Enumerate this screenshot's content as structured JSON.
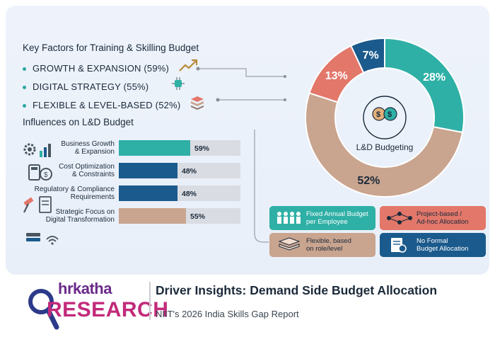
{
  "key_factors": {
    "title": "Key Factors for Training & Skilling Budget",
    "items": [
      "GROWTH & EXPANSION (59%)",
      "DIGITAL STRATEGY (55%)",
      "FLEXIBLE & LEVEL-BASED (52%)"
    ]
  },
  "influences": {
    "title": "Influences on L&D Budget"
  },
  "donut_center_label": "L&D Budgeting",
  "legend": [
    {
      "label_line1": "Fixed Annual Budget",
      "label_line2": "per Employee",
      "color": "#2fb0a6"
    },
    {
      "label_line1": "Project-based /",
      "label_line2": "Ad-hoc Allocation",
      "color": "#e2776a"
    },
    {
      "label_line1": "Flexible, based",
      "label_line2": "on role/level",
      "color": "#c9a48f"
    },
    {
      "label_line1": "No Formal",
      "label_line2": "Budget Allocation",
      "color": "#1b5a8c"
    }
  ],
  "footer": {
    "logo_top": "hrkatha",
    "logo_bottom": "RESEARCH",
    "title": "Driver Insights: Demand Side Budget Allocation",
    "subtitle": "NIIT's 2026 India Skills Gap Report"
  },
  "chart_data": [
    {
      "type": "bar",
      "title": "Influences on L&D Budget",
      "categories": [
        "Business Growth & Expansion",
        "Cost Optimization & Constraints",
        "Regulatory & Compliance Requirements",
        "Strategic Focus on Digital Transformation"
      ],
      "category_lines": [
        [
          "Business Growth",
          "& Expansion"
        ],
        [
          "Cost Optimization",
          "& Constraints"
        ],
        [
          "Regulatory & Compliance",
          "Requirements"
        ],
        [
          "Strategic Focus on",
          "Digital Transformation"
        ]
      ],
      "values": [
        59,
        48,
        48,
        55
      ],
      "value_labels": [
        "59%",
        "48%",
        "48%",
        "55%"
      ],
      "colors": [
        "#2fb0a6",
        "#1b5a8c",
        "#1b5a8c",
        "#c9a48f"
      ],
      "ylim": [
        0,
        100
      ]
    },
    {
      "type": "pie",
      "title": "L&D Budgeting",
      "slices": [
        {
          "label": "Fixed Annual Budget per Employee",
          "value": 28,
          "display": "28%",
          "color": "#2fb0a6"
        },
        {
          "label": "Flexible, based on role/level",
          "value": 52,
          "display": "52%",
          "color": "#c9a48f"
        },
        {
          "label": "Project-based / Ad-hoc Allocation",
          "value": 13,
          "display": "13%",
          "color": "#e2776a"
        },
        {
          "label": "No Formal Budget Allocation",
          "value": 7,
          "display": "7%",
          "color": "#1b5a8c"
        }
      ]
    }
  ]
}
